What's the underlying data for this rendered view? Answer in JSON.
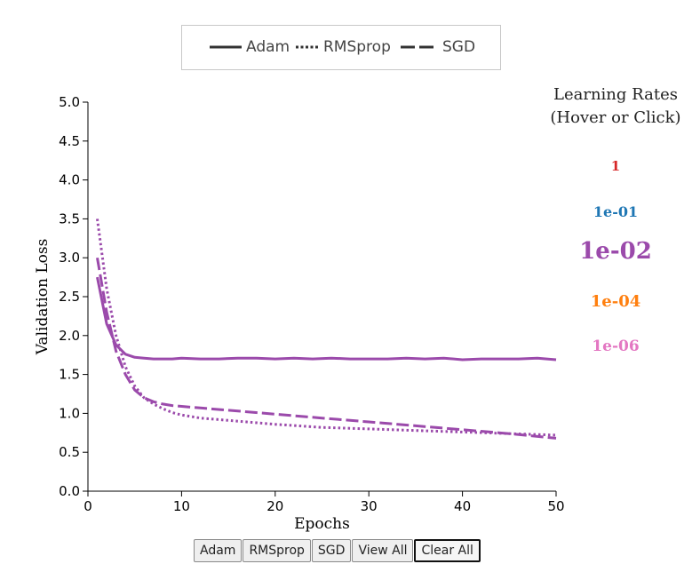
{
  "legend": {
    "items": [
      {
        "label": "Adam",
        "dash": "solid"
      },
      {
        "label": "RMSprop",
        "dash": "dotted"
      },
      {
        "label": "SGD",
        "dash": "dashed"
      }
    ]
  },
  "learning_rates": {
    "title_line1": "Learning Rates",
    "title_line2": "(Hover or Click)",
    "items": [
      {
        "label": "1",
        "color": "#d62728",
        "selected": false
      },
      {
        "label": "1e-01",
        "color": "#1f77b4",
        "selected": false
      },
      {
        "label": "1e-02",
        "color": "#9b4aab",
        "selected": true
      },
      {
        "label": "1e-04",
        "color": "#ff7f0e",
        "selected": false
      },
      {
        "label": "1e-06",
        "color": "#e377c2",
        "selected": false
      }
    ]
  },
  "buttons": {
    "adam": "Adam",
    "rmsprop": "RMSprop",
    "sgd": "SGD",
    "view_all": "View All",
    "clear_all": "Clear All"
  },
  "chart_data": {
    "type": "line",
    "xlabel": "Epochs",
    "ylabel": "Validation Loss",
    "xlim": [
      0,
      50
    ],
    "ylim": [
      0,
      5
    ],
    "xticks": [
      0,
      10,
      20,
      30,
      40,
      50
    ],
    "yticks": [
      "0.0",
      "0.5",
      "1.0",
      "1.5",
      "2.0",
      "2.5",
      "3.0",
      "3.5",
      "4.0",
      "4.5",
      "5.0"
    ],
    "grid": false,
    "line_color": "#9b4aab",
    "series": [
      {
        "name": "Adam",
        "dash": "solid",
        "x": [
          1,
          2,
          3,
          4,
          5,
          6,
          7,
          8,
          9,
          10,
          12,
          14,
          16,
          18,
          20,
          22,
          24,
          26,
          28,
          30,
          32,
          34,
          36,
          38,
          40,
          42,
          44,
          46,
          48,
          50
        ],
        "y": [
          2.75,
          2.15,
          1.88,
          1.76,
          1.72,
          1.71,
          1.7,
          1.7,
          1.7,
          1.71,
          1.7,
          1.7,
          1.71,
          1.71,
          1.7,
          1.71,
          1.7,
          1.71,
          1.7,
          1.7,
          1.7,
          1.71,
          1.7,
          1.71,
          1.69,
          1.7,
          1.7,
          1.7,
          1.71,
          1.69
        ]
      },
      {
        "name": "RMSprop",
        "dash": "dotted",
        "x": [
          1,
          2,
          3,
          4,
          5,
          6,
          7,
          8,
          9,
          10,
          12,
          15,
          20,
          25,
          30,
          35,
          40,
          45,
          50
        ],
        "y": [
          3.5,
          2.6,
          2.0,
          1.6,
          1.35,
          1.2,
          1.12,
          1.06,
          1.01,
          0.98,
          0.94,
          0.91,
          0.86,
          0.82,
          0.8,
          0.78,
          0.76,
          0.74,
          0.72
        ]
      },
      {
        "name": "SGD",
        "dash": "dashed",
        "x": [
          1,
          2,
          3,
          4,
          5,
          6,
          7,
          8,
          9,
          10,
          12,
          15,
          20,
          25,
          30,
          35,
          40,
          45,
          50
        ],
        "y": [
          3.0,
          2.3,
          1.8,
          1.5,
          1.3,
          1.2,
          1.15,
          1.12,
          1.1,
          1.09,
          1.07,
          1.04,
          0.99,
          0.94,
          0.89,
          0.84,
          0.79,
          0.74,
          0.68
        ]
      }
    ]
  }
}
